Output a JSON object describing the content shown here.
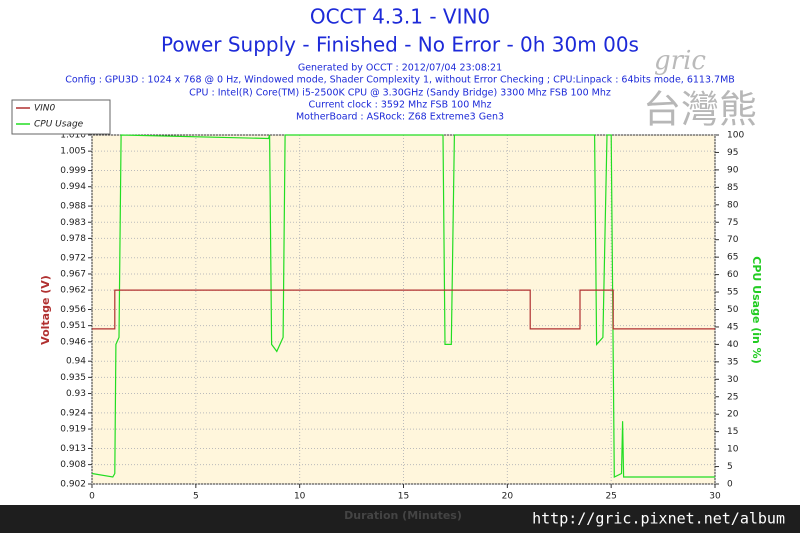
{
  "chart_data": {
    "type": "line",
    "title": "OCCT 4.3.1 - VIN0",
    "subtitle": "Power Supply - Finished - No Error - 0h 30m 00s",
    "info": [
      "Generated by OCCT : 2012/07/04 23:08:21",
      "Config : GPU3D : 1024 x 768 @ 0 Hz, Windowed mode, Shader Complexity 1, without Error Checking ; CPU:Linpack : 64bits mode, 6113.7MB",
      "CPU : Intel(R) Core(TM) i5-2500K CPU @ 3.30GHz (Sandy Bridge) 3300 Mhz FSB 100 Mhz",
      "Current clock : 3592 Mhz FSB 100 Mhz",
      "MotherBoard : ASRock: Z68 Extreme3 Gen3"
    ],
    "xlabel": "Duration (Minutes)",
    "ylabel": "Voltage (V)",
    "y2label": "CPU Usage (in %)",
    "xlim": [
      0,
      30
    ],
    "xticks": [
      0,
      5,
      10,
      15,
      20,
      25,
      30
    ],
    "ylim": [
      0.902,
      1.01
    ],
    "yticks": [
      0.902,
      0.908,
      0.913,
      0.919,
      0.924,
      0.93,
      0.935,
      0.94,
      0.946,
      0.951,
      0.956,
      0.962,
      0.967,
      0.972,
      0.978,
      0.983,
      0.988,
      0.994,
      0.999,
      1.005,
      {
        "value": 1.01,
        "label": "1.010"
      }
    ],
    "y2lim": [
      0,
      100
    ],
    "y2ticks": [
      0,
      5,
      10,
      15,
      20,
      25,
      30,
      35,
      40,
      45,
      50,
      55,
      60,
      65,
      70,
      75,
      80,
      85,
      90,
      95,
      100
    ],
    "grid": true,
    "legend": "top-left",
    "series": [
      {
        "name": "VIN0",
        "color": "#b03030",
        "x": [
          0,
          1.1,
          1.1,
          21.1,
          21.1,
          23.5,
          23.5,
          25.1,
          25.1,
          30
        ],
        "values": [
          0.95,
          0.95,
          0.962,
          0.962,
          0.95,
          0.95,
          0.962,
          0.962,
          0.95,
          0.95
        ]
      },
      {
        "name": "CPU Usage",
        "color": "#22dd22",
        "axis": "y2",
        "x": [
          0,
          1.0,
          1.1,
          1.15,
          1.3,
          1.4,
          8.5,
          8.55,
          8.65,
          8.9,
          9.2,
          9.3,
          16.9,
          17.0,
          17.3,
          17.45,
          24.2,
          24.3,
          24.6,
          24.8,
          25.0,
          25.15,
          25.5,
          25.55,
          25.6,
          30
        ],
        "values": [
          3,
          2,
          3,
          40,
          42,
          100,
          99,
          100,
          40,
          38,
          42,
          100,
          100,
          40,
          40,
          100,
          100,
          40,
          42,
          100,
          100,
          2,
          3,
          18,
          2,
          2
        ]
      }
    ],
    "watermark": [
      "gric",
      "台灣熊",
      "http://gric.pixnet.net/album"
    ]
  }
}
